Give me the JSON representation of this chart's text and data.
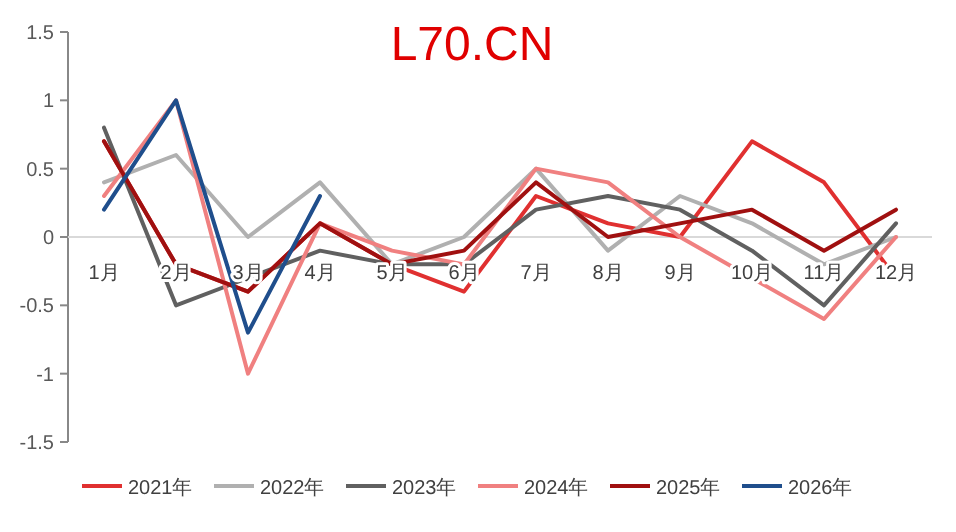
{
  "chart_data": {
    "type": "line",
    "title": "L70.CN",
    "categories": [
      "1月",
      "2月",
      "3月",
      "4月",
      "5月",
      "6月",
      "7月",
      "8月",
      "9月",
      "10月",
      "11月",
      "12月"
    ],
    "ylim": [
      -1.5,
      1.5
    ],
    "yticks": [
      {
        "value": -1.5,
        "label": "-1.5"
      },
      {
        "value": -1,
        "label": "-1"
      },
      {
        "value": -0.5,
        "label": "-0.5"
      },
      {
        "value": 0,
        "label": "0"
      },
      {
        "value": 0.5,
        "label": "0.5"
      },
      {
        "value": 1,
        "label": "1"
      },
      {
        "value": 1.5,
        "label": "1.5"
      }
    ],
    "grid": false,
    "legend": "bottom",
    "marker": "none",
    "line_style": "solid",
    "series": [
      {
        "name": "2021年",
        "color": "#e03030",
        "values": [
          0.7,
          -0.2,
          -0.4,
          0.1,
          -0.2,
          -0.4,
          0.3,
          0.1,
          0,
          0.7,
          0.4,
          -0.3
        ]
      },
      {
        "name": "2022年",
        "color": "#b0b0b0",
        "values": [
          0.4,
          0.6,
          0,
          0.4,
          -0.2,
          0,
          0.5,
          -0.1,
          0.3,
          0.1,
          -0.2,
          0
        ]
      },
      {
        "name": "2023年",
        "color": "#606060",
        "values": [
          0.8,
          -0.5,
          -0.3,
          -0.1,
          -0.2,
          -0.2,
          0.2,
          0.3,
          0.2,
          -0.1,
          -0.5,
          0.1
        ]
      },
      {
        "name": "2024年",
        "color": "#f08080",
        "values": [
          0.3,
          1.0,
          -1.0,
          0.1,
          -0.1,
          -0.2,
          0.5,
          0.4,
          0,
          -0.3,
          -0.6,
          0
        ]
      },
      {
        "name": "2025年",
        "color": "#a01010",
        "values": [
          0.7,
          -0.2,
          -0.4,
          0.1,
          -0.2,
          -0.1,
          0.4,
          0,
          0.1,
          0.2,
          -0.1,
          0.2
        ]
      },
      {
        "name": "2026年",
        "color": "#1f4e8c",
        "values": [
          0.2,
          1.0,
          -0.7,
          0.3,
          null,
          null,
          null,
          null,
          null,
          null,
          null,
          null
        ]
      }
    ]
  }
}
